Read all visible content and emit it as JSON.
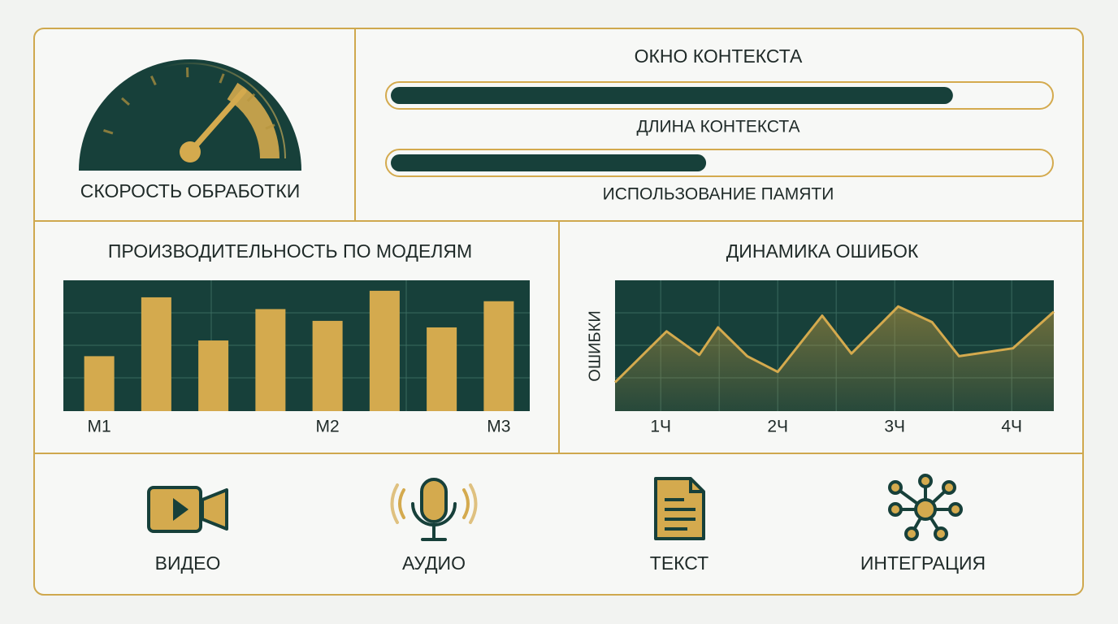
{
  "gauge": {
    "label": "СКОРОСТЬ ОБРАБОТКИ",
    "value": 0.73
  },
  "context": {
    "title": "ОКНО КОНТЕКСТА",
    "bars": [
      {
        "label": "ДЛИНА КОНТЕКСТА",
        "value": 0.85
      },
      {
        "label": "ИСПОЛЬЗОВАНИЕ ПАМЯТИ",
        "value": 0.48
      }
    ]
  },
  "chart_data": [
    {
      "type": "bar",
      "title": "ПРОИЗВОДИТЕЛЬНОСТЬ ПО МОДЕЛЯМ",
      "categories": [
        "M1",
        null,
        null,
        null,
        "M2",
        null,
        null,
        "M3"
      ],
      "values": [
        42,
        87,
        54,
        78,
        69,
        92,
        64,
        84
      ],
      "color": "#d4aa4e",
      "ylim": [
        0,
        100
      ]
    },
    {
      "type": "line",
      "title": "ДИНАМИКА ОШИБОК",
      "y_label": "ОШИБКИ",
      "x": [
        0.61,
        1.05,
        1.33,
        1.49,
        1.74,
        2.0,
        2.38,
        2.63,
        3.03,
        3.32,
        3.55,
        4.01,
        4.36
      ],
      "values": [
        22,
        61,
        43,
        64,
        42,
        30,
        73,
        44,
        80,
        68,
        42,
        48,
        76
      ],
      "color": "#d4aa4e",
      "xlim": [
        0.61,
        4.36
      ],
      "ylim": [
        0,
        100
      ],
      "xticks": [
        {
          "value": 1,
          "label": "1Ч"
        },
        {
          "value": 2,
          "label": "2Ч"
        },
        {
          "value": 3,
          "label": "3Ч"
        },
        {
          "value": 4,
          "label": "4Ч"
        }
      ]
    }
  ],
  "modalities": [
    {
      "label": "ВИДЕО"
    },
    {
      "label": "АУДИО"
    },
    {
      "label": "ТЕКСТ"
    },
    {
      "label": "ИНТЕГРАЦИЯ"
    }
  ]
}
